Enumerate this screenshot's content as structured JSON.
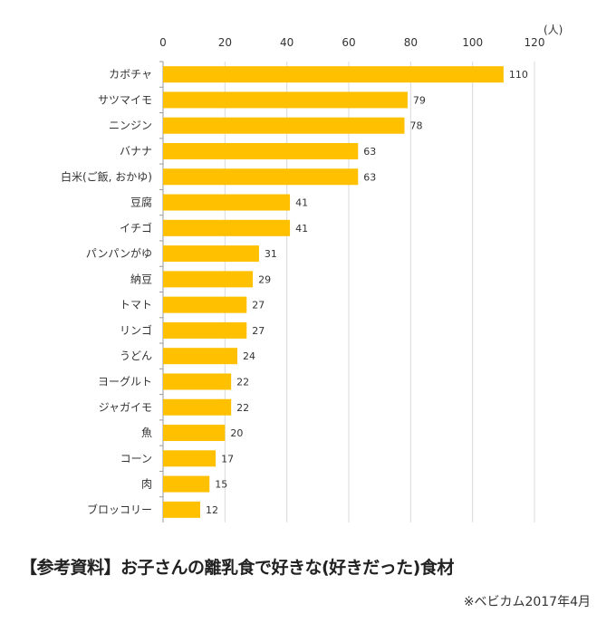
{
  "chart_data": {
    "type": "bar",
    "orientation": "horizontal",
    "categories": [
      "カボチャ",
      "サツマイモ",
      "ニンジン",
      "バナナ",
      "白米(ご飯, おかゆ)",
      "豆腐",
      "イチゴ",
      "パンパンがゆ",
      "納豆",
      "トマト",
      "リンゴ",
      "うどん",
      "ヨーグルト",
      "ジャガイモ",
      "魚",
      "コーン",
      "肉",
      "ブロッコリー"
    ],
    "values": [
      110,
      79,
      78,
      63,
      63,
      41,
      41,
      31,
      29,
      27,
      27,
      24,
      22,
      22,
      20,
      17,
      15,
      12
    ],
    "xlim": [
      0,
      120
    ],
    "xticks": [
      0,
      20,
      40,
      60,
      80,
      100,
      120
    ],
    "unit_label": "(人)",
    "grid": true,
    "bar_color": "#FFC000"
  },
  "title": "【参考資料】お子さんの離乳食で好きな(好きだった)食材",
  "source": "※ベビカム2017年4月"
}
